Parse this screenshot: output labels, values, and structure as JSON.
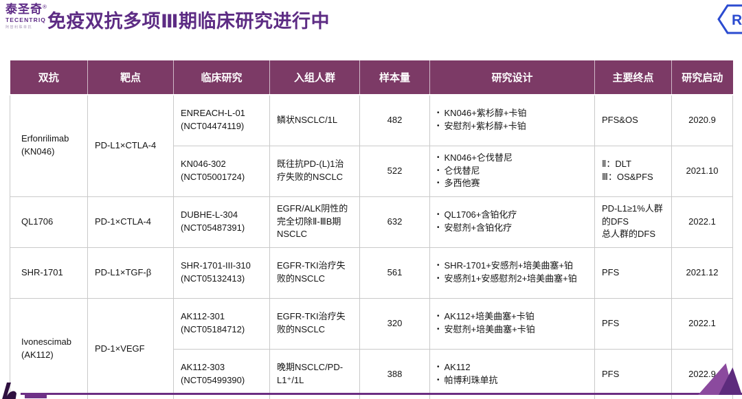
{
  "brand": {
    "name_cn": "泰圣奇",
    "reg_mark": "®",
    "name_en": "TECENTRIQ",
    "subtitle": "阿替利珠单抗"
  },
  "page": {
    "title": "免疫双抗多项Ⅲ期临床研究进行中",
    "roche_letter": "R"
  },
  "colors": {
    "title_purple": "#5d2c84",
    "header_bg": "#7c3a66",
    "roche_blue": "#2b4bd0",
    "bottom_line": "#6b2d82",
    "triangle_dark": "#5d2b7d",
    "triangle_light": "#8b4a9e"
  },
  "table": {
    "columns": [
      "双抗",
      "靶点",
      "临床研究",
      "入组人群",
      "样本量",
      "研究设计",
      "主要终点",
      "研究启动"
    ],
    "groups": [
      {
        "antibody": [
          "Erfonrilimab",
          "(KN046)"
        ],
        "target": "PD-L1×CTLA-4",
        "trials": [
          {
            "study": [
              "ENREACH-L-01",
              "(NCT04474119)"
            ],
            "population": "鳞状NSCLC/1L",
            "sample": "482",
            "design": [
              "KN046+紫杉醇+卡铂",
              "安慰剂+紫杉醇+卡铂"
            ],
            "endpoints": [
              "PFS&OS"
            ],
            "start": "2020.9"
          },
          {
            "study": [
              "KN046-302",
              "(NCT05001724)"
            ],
            "population": "既往抗PD-(L)1治疗失败的NSCLC",
            "sample": "522",
            "design": [
              "KN046+仑伐替尼",
              "仑伐替尼",
              "多西他赛"
            ],
            "endpoints": [
              "Ⅱ：DLT",
              "Ⅲ：OS&PFS"
            ],
            "start": "2021.10"
          }
        ]
      },
      {
        "antibody": [
          "QL1706"
        ],
        "target": "PD-1×CTLA-4",
        "trials": [
          {
            "study": [
              "DUBHE-L-304",
              "(NCT05487391)"
            ],
            "population": "EGFR/ALK阴性的完全切除Ⅱ-ⅢB期NSCLC",
            "sample": "632",
            "design": [
              "QL1706+含铂化疗",
              "安慰剂+含铂化疗"
            ],
            "endpoints": [
              "PD-L1≥1%人群的DFS",
              "总人群的DFS"
            ],
            "start": "2022.1"
          }
        ]
      },
      {
        "antibody": [
          "SHR-1701"
        ],
        "target": "PD-L1×TGF-β",
        "trials": [
          {
            "study": [
              "SHR-1701-III-310",
              "(NCT05132413)"
            ],
            "population": "EGFR-TKI治疗失败的NSCLC",
            "sample": "561",
            "design": [
              "SHR-1701+安感剂+培美曲塞+铂",
              "安感剂1+安感慰剂2+培美曲塞+铂"
            ],
            "endpoints": [
              "PFS"
            ],
            "start": "2021.12"
          }
        ]
      },
      {
        "antibody": [
          "Ivonescimab",
          "(AK112)"
        ],
        "target": "PD-1×VEGF",
        "trials": [
          {
            "study": [
              "AK112-301",
              "(NCT05184712)"
            ],
            "population": "EGFR-TKI治疗失败的NSCLC",
            "sample": "320",
            "design": [
              "AK112+培美曲塞+卡铂",
              "安慰剂+培美曲塞+卡铂"
            ],
            "endpoints": [
              "PFS"
            ],
            "start": "2022.1"
          },
          {
            "study": [
              "AK112-303",
              "(NCT05499390)"
            ],
            "population": "晚期NSCLC/PD-L1⁺/1L",
            "sample": "388",
            "design": [
              "AK112",
              "帕博利珠单抗"
            ],
            "endpoints": [
              "PFS"
            ],
            "start": "2022.9"
          }
        ]
      }
    ]
  }
}
